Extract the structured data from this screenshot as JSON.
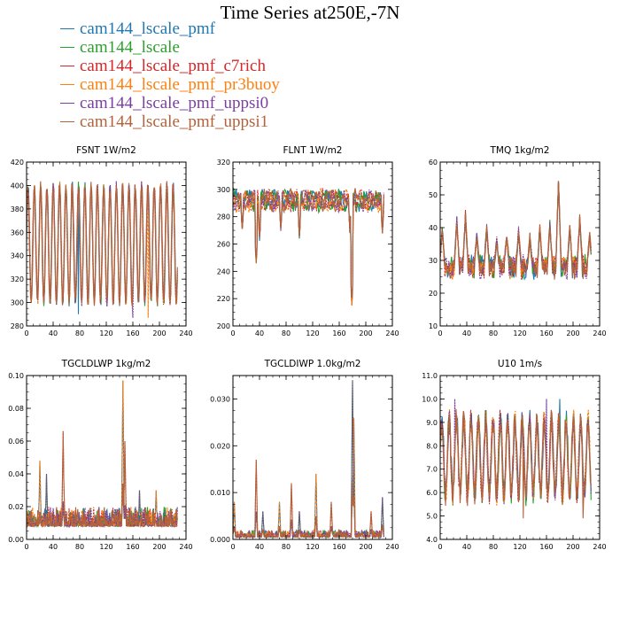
{
  "title": "Time Series at250E,-7N",
  "legend": [
    {
      "label": "cam144_lscale_pmf",
      "color": "#1f77b4"
    },
    {
      "label": "cam144_lscale",
      "color": "#2ca02c"
    },
    {
      "label": "cam144_lscale_pmf_c7rich",
      "color": "#d62728"
    },
    {
      "label": "cam144_lscale_pmf_pr3buoy",
      "color": "#ff7f0e"
    },
    {
      "label": "cam144_lscale_pmf_uppsi0",
      "color": "#7b3fa0"
    },
    {
      "label": "cam144_lscale_pmf_uppsi1",
      "color": "#b5623a"
    }
  ],
  "chart_data": [
    {
      "type": "line",
      "title": "FSNT",
      "units": "1W/m2",
      "xlim": [
        0,
        240
      ],
      "ylim": [
        280,
        420
      ],
      "xticks": [
        "0",
        "40",
        "80",
        "120",
        "160",
        "200",
        "240"
      ],
      "yticks": [
        "280",
        "300",
        "320",
        "340",
        "360",
        "380",
        "400",
        "420"
      ],
      "series_names": [
        "cam144_lscale_pmf",
        "cam144_lscale",
        "cam144_lscale_pmf_c7rich",
        "cam144_lscale_pmf_pr3buoy",
        "cam144_lscale_pmf_uppsi0",
        "cam144_lscale_pmf_uppsi1"
      ],
      "profile": {
        "kind": "oscillate",
        "base": 350,
        "amp": 50,
        "period": 9.5,
        "noise": 4,
        "spikes": [
          [
            78,
            290
          ],
          [
            160,
            287
          ],
          [
            183,
            287
          ]
        ]
      }
    },
    {
      "type": "line",
      "title": "FLNT",
      "units": "1W/m2",
      "xlim": [
        0,
        240
      ],
      "ylim": [
        200,
        320
      ],
      "xticks": [
        "0",
        "40",
        "80",
        "120",
        "160",
        "200",
        "240"
      ],
      "yticks": [
        "200",
        "220",
        "240",
        "260",
        "280",
        "300",
        "320"
      ],
      "series_names": [
        "cam144_lscale_pmf",
        "cam144_lscale",
        "cam144_lscale_pmf_c7rich",
        "cam144_lscale_pmf_pr3buoy",
        "cam144_lscale_pmf_uppsi0",
        "cam144_lscale_pmf_uppsi1"
      ],
      "profile": {
        "kind": "noisy",
        "base": 292,
        "amp": 5,
        "noise": 4,
        "dips": [
          [
            14,
            270
          ],
          [
            35,
            247
          ],
          [
            40,
            265
          ],
          [
            72,
            272
          ],
          [
            100,
            265
          ],
          [
            176,
            270
          ],
          [
            179,
            218
          ],
          [
            225,
            270
          ]
        ]
      }
    },
    {
      "type": "line",
      "title": "TMQ",
      "units": "1kg/m2",
      "xlim": [
        0,
        240
      ],
      "ylim": [
        10,
        60
      ],
      "xticks": [
        "0",
        "40",
        "80",
        "120",
        "160",
        "200",
        "240"
      ],
      "yticks": [
        "10",
        "20",
        "30",
        "40",
        "50",
        "60"
      ],
      "series_names": [
        "cam144_lscale_pmf",
        "cam144_lscale",
        "cam144_lscale_pmf_c7rich",
        "cam144_lscale_pmf_pr3buoy",
        "cam144_lscale_pmf_uppsi0",
        "cam144_lscale_pmf_uppsi1"
      ],
      "profile": {
        "kind": "peaks",
        "base": 28,
        "noise": 2.5,
        "peaks": [
          [
            3,
            40
          ],
          [
            25,
            42
          ],
          [
            38,
            44
          ],
          [
            55,
            38
          ],
          [
            70,
            40
          ],
          [
            85,
            36
          ],
          [
            100,
            38
          ],
          [
            118,
            39
          ],
          [
            135,
            37
          ],
          [
            150,
            40
          ],
          [
            165,
            41
          ],
          [
            178,
            55
          ],
          [
            195,
            40
          ],
          [
            210,
            43
          ],
          [
            225,
            38
          ]
        ]
      }
    },
    {
      "type": "line",
      "title": "TGCLDLWP",
      "units": "1kg/m2",
      "xlim": [
        0,
        240
      ],
      "ylim": [
        0,
        0.1
      ],
      "xticks": [
        "0",
        "40",
        "80",
        "120",
        "160",
        "200",
        "240"
      ],
      "yticks": [
        "0.00",
        "0.02",
        "0.04",
        "0.06",
        "0.08",
        "0.10"
      ],
      "series_names": [
        "cam144_lscale_pmf",
        "cam144_lscale",
        "cam144_lscale_pmf_c7rich",
        "cam144_lscale_pmf_pr3buoy",
        "cam144_lscale_pmf_uppsi0",
        "cam144_lscale_pmf_uppsi1"
      ],
      "profile": {
        "kind": "spiky",
        "base": 0.008,
        "noise": 0.012,
        "peaks": [
          [
            20,
            0.048
          ],
          [
            55,
            0.066
          ],
          [
            30,
            0.04
          ],
          [
            145,
            0.097
          ],
          [
            148,
            0.06
          ],
          [
            170,
            0.03
          ],
          [
            195,
            0.03
          ]
        ]
      }
    },
    {
      "type": "line",
      "title": "TGCLDIWP",
      "units": "1.0kg/m2",
      "xlim": [
        0,
        240
      ],
      "ylim": [
        0,
        0.035
      ],
      "xticks": [
        "0",
        "40",
        "80",
        "120",
        "160",
        "200",
        "240"
      ],
      "yticks": [
        "0.000",
        "0.010",
        "0.020",
        "0.030"
      ],
      "series_names": [
        "cam144_lscale_pmf",
        "cam144_lscale",
        "cam144_lscale_pmf_c7rich",
        "cam144_lscale_pmf_pr3buoy",
        "cam144_lscale_pmf_uppsi0",
        "cam144_lscale_pmf_uppsi1"
      ],
      "profile": {
        "kind": "spiky",
        "base": 0.0005,
        "noise": 0.0015,
        "peaks": [
          [
            2,
            0.008
          ],
          [
            35,
            0.017
          ],
          [
            45,
            0.006
          ],
          [
            70,
            0.008
          ],
          [
            88,
            0.012
          ],
          [
            100,
            0.006
          ],
          [
            125,
            0.014
          ],
          [
            148,
            0.008
          ],
          [
            180,
            0.034
          ],
          [
            182,
            0.026
          ],
          [
            208,
            0.006
          ],
          [
            225,
            0.009
          ]
        ]
      }
    },
    {
      "type": "line",
      "title": "U10",
      "units": "1m/s",
      "xlim": [
        0,
        240
      ],
      "ylim": [
        4,
        11
      ],
      "xticks": [
        "0",
        "40",
        "80",
        "120",
        "160",
        "200",
        "240"
      ],
      "yticks": [
        "4.0",
        "5.0",
        "6.0",
        "7.0",
        "8.0",
        "9.0",
        "10.0",
        "11.0"
      ],
      "series_names": [
        "cam144_lscale_pmf",
        "cam144_lscale",
        "cam144_lscale_pmf_c7rich",
        "cam144_lscale_pmf_pr3buoy",
        "cam144_lscale_pmf_uppsi0",
        "cam144_lscale_pmf_uppsi1"
      ],
      "profile": {
        "kind": "oscillate",
        "base": 7.5,
        "amp": 1.6,
        "period": 11,
        "noise": 0.5,
        "spikes": [
          [
            22,
            10.0
          ],
          [
            125,
            4.9
          ],
          [
            160,
            10.0
          ],
          [
            180,
            10.0
          ],
          [
            215,
            4.9
          ]
        ]
      }
    }
  ]
}
